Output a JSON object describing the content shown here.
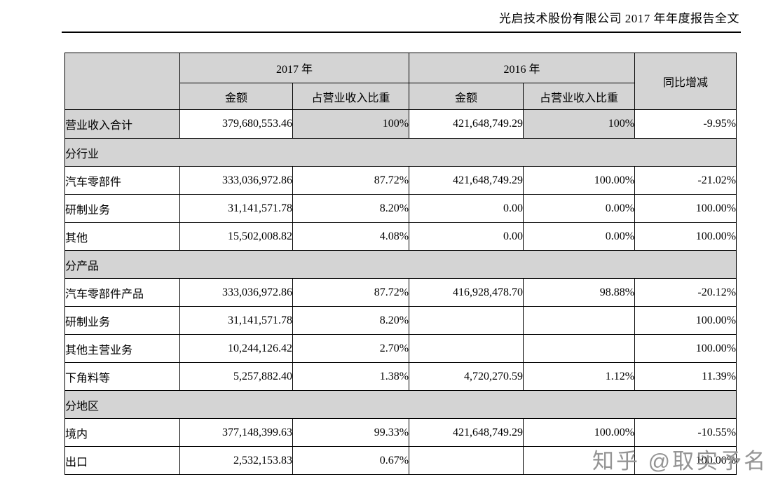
{
  "document": {
    "title": "光启技术股份有限公司 2017 年年度报告全文"
  },
  "table": {
    "year_group_2017": "2017 年",
    "year_group_2016": "2016 年",
    "sub_amount": "金额",
    "sub_proportion": "占营业收入比重",
    "yoy_label": "同比增减",
    "rows": [
      {
        "type": "total",
        "label": "营业收入合计",
        "cells": [
          "379,680,553.46",
          "100%",
          "421,648,749.29",
          "100%",
          "-9.95%"
        ]
      },
      {
        "type": "section",
        "label": "分行业"
      },
      {
        "type": "data",
        "label": "汽车零部件",
        "cells": [
          "333,036,972.86",
          "87.72%",
          "421,648,749.29",
          "100.00%",
          "-21.02%"
        ]
      },
      {
        "type": "data",
        "label": "研制业务",
        "cells": [
          "31,141,571.78",
          "8.20%",
          "0.00",
          "0.00%",
          "100.00%"
        ]
      },
      {
        "type": "data",
        "label": "其他",
        "cells": [
          "15,502,008.82",
          "4.08%",
          "0.00",
          "0.00%",
          "100.00%"
        ]
      },
      {
        "type": "section",
        "label": "分产品"
      },
      {
        "type": "data",
        "label": "汽车零部件产品",
        "cells": [
          "333,036,972.86",
          "87.72%",
          "416,928,478.70",
          "98.88%",
          "-20.12%"
        ]
      },
      {
        "type": "data",
        "label": "研制业务",
        "cells": [
          "31,141,571.78",
          "8.20%",
          "",
          "",
          "100.00%"
        ]
      },
      {
        "type": "data",
        "label": "其他主营业务",
        "cells": [
          "10,244,126.42",
          "2.70%",
          "",
          "",
          "100.00%"
        ]
      },
      {
        "type": "data",
        "label": "下角料等",
        "cells": [
          "5,257,882.40",
          "1.38%",
          "4,720,270.59",
          "1.12%",
          "11.39%"
        ]
      },
      {
        "type": "section",
        "label": "分地区"
      },
      {
        "type": "data",
        "label": "境内",
        "cells": [
          "377,148,399.63",
          "99.33%",
          "421,648,749.29",
          "100.00%",
          "-10.55%"
        ]
      },
      {
        "type": "data",
        "label": "出口",
        "cells": [
          "2,532,153.83",
          "0.67%",
          "",
          "",
          "100.00%"
        ]
      }
    ]
  },
  "watermark": {
    "text": "知乎 @取实予名",
    "color": "#949494"
  },
  "colors": {
    "cell_gray": "#d4d4d4",
    "border": "#000000",
    "background": "#ffffff"
  }
}
